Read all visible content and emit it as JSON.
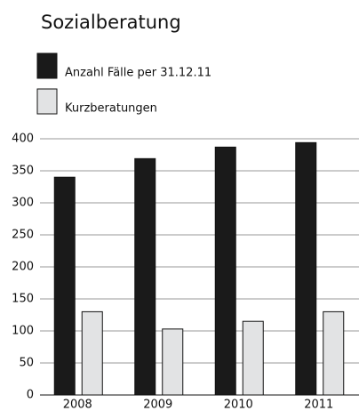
{
  "chart_data": {
    "type": "bar",
    "title": "Sozialberatung",
    "categories": [
      "2008",
      "2009",
      "2010",
      "2011"
    ],
    "series": [
      {
        "name": "Anzahl Fälle per 31.12.11",
        "color": "#1a1a1a",
        "values": [
          340,
          369,
          387,
          394
        ]
      },
      {
        "name": "Kurzberatungen",
        "color": "#e2e3e4",
        "values": [
          130,
          103,
          115,
          130
        ]
      }
    ],
    "ylim": [
      0,
      400
    ],
    "yticks": [
      0,
      50,
      100,
      150,
      200,
      250,
      300,
      350,
      400
    ],
    "grid": true
  }
}
